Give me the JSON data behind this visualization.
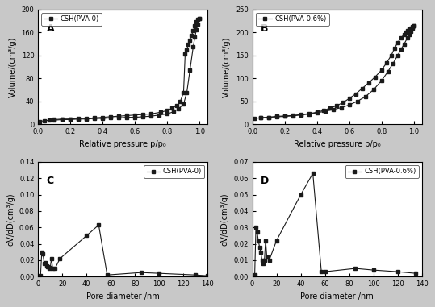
{
  "panel_A": {
    "label": "CSH(PVA-0)",
    "title": "A",
    "xlabel": "Relative pressure p/p₀",
    "ylabel": "Volume/(cm³/g)",
    "ylim": [
      0,
      200
    ],
    "yticks": [
      0,
      40,
      80,
      120,
      160,
      200
    ],
    "xlim": [
      0.0,
      1.05
    ],
    "xticks": [
      0.0,
      0.2,
      0.4,
      0.6,
      0.8,
      1.0
    ],
    "adsorption_x": [
      0.01,
      0.04,
      0.07,
      0.1,
      0.15,
      0.2,
      0.25,
      0.3,
      0.35,
      0.4,
      0.45,
      0.5,
      0.55,
      0.6,
      0.65,
      0.7,
      0.75,
      0.8,
      0.84,
      0.87,
      0.9,
      0.92,
      0.94,
      0.96,
      0.97,
      0.98,
      0.99,
      1.0
    ],
    "adsorption_y": [
      5,
      6,
      7,
      7,
      8,
      8,
      9,
      9,
      10,
      10,
      11,
      11,
      12,
      12,
      13,
      14,
      16,
      18,
      22,
      27,
      35,
      55,
      95,
      135,
      152,
      165,
      175,
      185
    ],
    "desorption_x": [
      1.0,
      0.99,
      0.98,
      0.97,
      0.96,
      0.95,
      0.94,
      0.93,
      0.92,
      0.91,
      0.9,
      0.88,
      0.86,
      0.83,
      0.8,
      0.76,
      0.7,
      0.65,
      0.6,
      0.55,
      0.5,
      0.45,
      0.4,
      0.35,
      0.3,
      0.25,
      0.2,
      0.15,
      0.1
    ],
    "desorption_y": [
      185,
      183,
      178,
      172,
      163,
      155,
      147,
      140,
      130,
      122,
      55,
      40,
      33,
      28,
      24,
      21,
      18,
      17,
      16,
      15,
      14,
      13,
      12,
      11,
      10,
      10,
      9,
      9,
      8
    ]
  },
  "panel_B": {
    "label": "CSH(PVA-0.6%)",
    "title": "B",
    "xlabel": "Relative pressure p/p₀",
    "ylabel": "Volume/(cm³/g)",
    "ylim": [
      0,
      250
    ],
    "yticks": [
      0,
      50,
      100,
      150,
      200,
      250
    ],
    "xlim": [
      0.0,
      1.05
    ],
    "xticks": [
      0.0,
      0.2,
      0.4,
      0.6,
      0.8,
      1.0
    ],
    "adsorption_x": [
      0.01,
      0.05,
      0.1,
      0.15,
      0.2,
      0.25,
      0.3,
      0.35,
      0.4,
      0.45,
      0.5,
      0.55,
      0.6,
      0.65,
      0.7,
      0.75,
      0.8,
      0.84,
      0.87,
      0.9,
      0.92,
      0.94,
      0.96,
      0.97,
      0.98,
      0.99,
      1.0
    ],
    "adsorption_y": [
      12,
      14,
      15,
      16,
      17,
      18,
      20,
      22,
      25,
      28,
      32,
      36,
      42,
      50,
      60,
      75,
      95,
      115,
      132,
      150,
      163,
      175,
      188,
      196,
      203,
      210,
      215
    ],
    "desorption_x": [
      1.0,
      0.99,
      0.98,
      0.97,
      0.96,
      0.95,
      0.94,
      0.92,
      0.9,
      0.88,
      0.86,
      0.83,
      0.8,
      0.76,
      0.72,
      0.68,
      0.64,
      0.6,
      0.56,
      0.52,
      0.48,
      0.44,
      0.4,
      0.35,
      0.3,
      0.25,
      0.2,
      0.15,
      0.1,
      0.05
    ],
    "desorption_y": [
      215,
      213,
      210,
      207,
      204,
      200,
      196,
      188,
      178,
      165,
      150,
      133,
      118,
      103,
      90,
      78,
      66,
      56,
      47,
      40,
      35,
      30,
      26,
      23,
      21,
      19,
      18,
      17,
      15,
      14
    ]
  },
  "panel_C": {
    "label": "CSH(PVA-0)",
    "title": "C",
    "xlabel": "Pore diameter /nm",
    "ylabel": "dV/dD(cm³/g)",
    "ylim": [
      0,
      0.14
    ],
    "yticks": [
      0.0,
      0.02,
      0.04,
      0.06,
      0.08,
      0.1,
      0.12,
      0.14
    ],
    "xlim": [
      0,
      140
    ],
    "xticks": [
      0,
      20,
      40,
      60,
      80,
      100,
      120,
      140
    ],
    "x": [
      2,
      3,
      4,
      5,
      6,
      7,
      8,
      9,
      10,
      11,
      12,
      14,
      18,
      40,
      50,
      57,
      85,
      100,
      130,
      140
    ],
    "y": [
      0.001,
      0.03,
      0.028,
      0.016,
      0.017,
      0.013,
      0.012,
      0.01,
      0.011,
      0.022,
      0.01,
      0.01,
      0.022,
      0.05,
      0.063,
      0.002,
      0.005,
      0.004,
      0.002,
      0.001
    ]
  },
  "panel_D": {
    "label": "CSH(PVA-0.6%)",
    "title": "D",
    "xlabel": "Pore diameter /nm",
    "ylabel": "dV/dD(cm³/g)",
    "ylim": [
      0,
      0.07
    ],
    "yticks": [
      0.0,
      0.01,
      0.02,
      0.03,
      0.04,
      0.05,
      0.06,
      0.07
    ],
    "xlim": [
      0,
      140
    ],
    "xticks": [
      0,
      20,
      40,
      60,
      80,
      100,
      120,
      140
    ],
    "x": [
      2,
      3,
      4,
      5,
      6,
      7,
      8,
      9,
      10,
      11,
      12,
      14,
      20,
      40,
      50,
      57,
      60,
      85,
      100,
      120,
      135
    ],
    "y": [
      0.001,
      0.03,
      0.027,
      0.022,
      0.018,
      0.015,
      0.01,
      0.008,
      0.01,
      0.022,
      0.012,
      0.01,
      0.022,
      0.05,
      0.063,
      0.003,
      0.003,
      0.005,
      0.004,
      0.003,
      0.002
    ]
  },
  "line_color": "#1a1a1a",
  "marker": "s",
  "markersize": 2.5,
  "bg_color": "#c8c8c8",
  "plot_bg": "#ffffff",
  "linewidth": 0.8,
  "fontsize_label": 7,
  "fontsize_tick": 6,
  "fontsize_title": 9,
  "fontsize_legend": 6
}
